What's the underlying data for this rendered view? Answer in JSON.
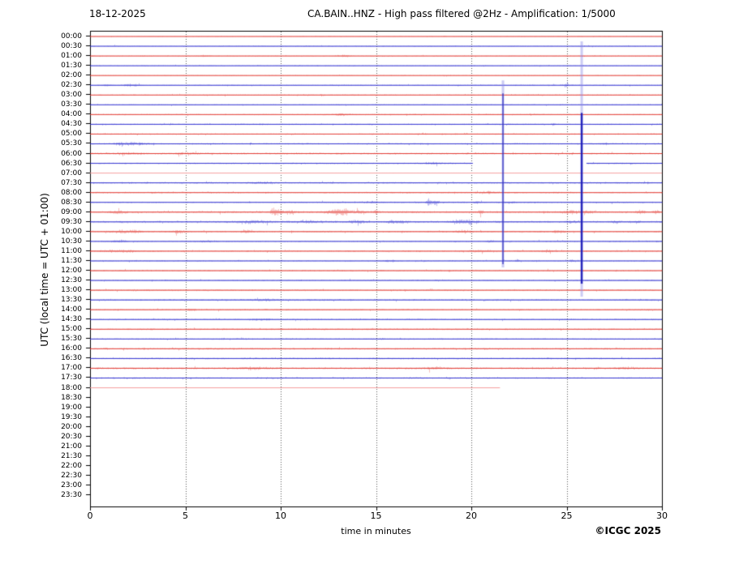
{
  "header": {
    "date": "18-12-2025",
    "title": "CA.BAIN..HNZ - High pass filtered @2Hz - Amplification: 1/5000"
  },
  "axes": {
    "x_label": "time in minutes",
    "y_label": "UTC (local time = UTC + 01:00)",
    "x_ticks": [
      0,
      5,
      10,
      15,
      20,
      25,
      30
    ],
    "x_range": [
      0,
      30
    ],
    "grid_minutes": [
      5,
      10,
      15,
      20,
      25
    ]
  },
  "footer": {
    "copyright": "©ICGC 2025"
  },
  "colors": {
    "red": "#e03028",
    "blue": "#2525cd",
    "pale_red": "#f5a0a0",
    "spike_band": "#8c8ce6",
    "spike_core": "#1515b5",
    "grid": "#555555",
    "axis": "#000000",
    "text": "#000000"
  },
  "chart_data": {
    "type": "line",
    "subtype": "helicorder",
    "title": "CA.BAIN..HNZ - High pass filtered @2Hz - Amplification: 1/5000",
    "xlabel": "time in minutes",
    "ylabel": "UTC (local time = UTC + 01:00)",
    "xlim": [
      0,
      30
    ],
    "grid": true,
    "minutes_per_row": 30,
    "rows": [
      {
        "label": "00:00",
        "color": "red",
        "data": true,
        "amp": 0.5,
        "events": []
      },
      {
        "label": "00:30",
        "color": "blue",
        "data": true,
        "amp": 0.7,
        "events": []
      },
      {
        "label": "01:00",
        "color": "red",
        "data": true,
        "amp": 0.7,
        "events": [
          [
            6,
            1.2,
            0.15
          ],
          [
            13.3,
            1.4,
            0.2
          ]
        ]
      },
      {
        "label": "01:30",
        "color": "blue",
        "data": true,
        "amp": 0.7,
        "events": []
      },
      {
        "label": "02:00",
        "color": "red",
        "data": true,
        "amp": 0.6,
        "events": []
      },
      {
        "label": "02:30",
        "color": "blue",
        "data": true,
        "amp": 0.8,
        "events": [
          [
            0.9,
            1.8,
            0.2
          ],
          [
            2.1,
            1.7,
            0.3
          ],
          [
            25,
            1.1,
            0.2
          ]
        ]
      },
      {
        "label": "03:00",
        "color": "red",
        "data": true,
        "amp": 0.9,
        "events": []
      },
      {
        "label": "03:30",
        "color": "blue",
        "data": true,
        "amp": 0.8,
        "events": []
      },
      {
        "label": "04:00",
        "color": "red",
        "data": true,
        "amp": 0.9,
        "events": [
          [
            13.2,
            1.4,
            0.3
          ]
        ]
      },
      {
        "label": "04:30",
        "color": "blue",
        "data": true,
        "amp": 0.9,
        "events": [
          [
            24.3,
            2.8,
            0.08
          ]
        ]
      },
      {
        "label": "05:00",
        "color": "red",
        "data": true,
        "amp": 0.9,
        "events": []
      },
      {
        "label": "05:30",
        "color": "blue",
        "data": true,
        "amp": 1.0,
        "events": [
          [
            1.8,
            2.0,
            0.4
          ],
          [
            2.6,
            1.4,
            0.3
          ],
          [
            27,
            1.3,
            0.15
          ]
        ]
      },
      {
        "label": "06:00",
        "color": "red",
        "data": true,
        "amp": 1.2,
        "events": [
          [
            2,
            1.4,
            0.5
          ],
          [
            5,
            1.2,
            0.4
          ]
        ]
      },
      {
        "label": "06:30",
        "color": "blue",
        "data": true,
        "amp": 1.0,
        "gaps": [
          [
            20.08,
            26.04
          ]
        ],
        "events": [
          [
            18,
            1.4,
            0.3
          ]
        ]
      },
      {
        "label": "07:00",
        "color": "red",
        "data": true,
        "pale": true,
        "amp": 0.3,
        "events": []
      },
      {
        "label": "07:30",
        "color": "blue",
        "data": true,
        "amp": 1.1,
        "events": [
          [
            9,
            1.3,
            0.4
          ]
        ]
      },
      {
        "label": "08:00",
        "color": "red",
        "data": true,
        "amp": 1.1,
        "events": [
          [
            21,
            1.3,
            0.3
          ]
        ]
      },
      {
        "label": "08:30",
        "color": "blue",
        "data": true,
        "amp": 1.0,
        "events": [
          [
            14.8,
            1.4,
            0.2
          ],
          [
            17.75,
            5.5,
            0.1
          ],
          [
            18.1,
            4.5,
            0.12
          ],
          [
            20.3,
            1.6,
            0.15
          ],
          [
            22,
            1.3,
            0.2
          ]
        ]
      },
      {
        "label": "09:00",
        "color": "red",
        "data": true,
        "amp": 1.4,
        "events": [
          [
            1.5,
            2.2,
            0.25
          ],
          [
            9.62,
            5.0,
            0.12
          ],
          [
            9.95,
            4.0,
            0.1
          ],
          [
            10.4,
            2.5,
            0.2
          ],
          [
            12.6,
            2.2,
            0.3
          ],
          [
            13.1,
            3.0,
            0.25
          ],
          [
            13.35,
            3.0,
            0.2
          ],
          [
            14.1,
            2.2,
            0.3
          ],
          [
            15.0,
            3.5,
            0.07
          ],
          [
            20.5,
            4.0,
            0.08
          ],
          [
            25.2,
            2.2,
            0.3
          ],
          [
            26.1,
            2.0,
            0.2
          ],
          [
            28.9,
            2.3,
            0.15
          ],
          [
            29.7,
            2.5,
            0.12
          ]
        ]
      },
      {
        "label": "09:30",
        "color": "blue",
        "data": true,
        "amp": 1.3,
        "events": [
          [
            8.5,
            1.7,
            0.6
          ],
          [
            11.5,
            1.5,
            0.4
          ],
          [
            14,
            1.7,
            0.3
          ],
          [
            15.8,
            2.2,
            0.15
          ],
          [
            16.3,
            1.8,
            0.2
          ],
          [
            19.35,
            3.5,
            0.25
          ],
          [
            19.9,
            2.5,
            0.15
          ],
          [
            20.3,
            2.0,
            0.1
          ],
          [
            25.2,
            1.6,
            0.2
          ],
          [
            27.6,
            1.6,
            0.15
          ],
          [
            28.6,
            1.5,
            0.15
          ]
        ]
      },
      {
        "label": "10:00",
        "color": "red",
        "data": true,
        "amp": 1.2,
        "events": [
          [
            1.6,
            1.8,
            0.4
          ],
          [
            2.3,
            1.6,
            0.3
          ],
          [
            4.6,
            2.0,
            0.25
          ],
          [
            8.2,
            2.6,
            0.15
          ],
          [
            19.5,
            2.0,
            0.3
          ],
          [
            24.6,
            1.4,
            0.2
          ]
        ]
      },
      {
        "label": "10:30",
        "color": "blue",
        "data": true,
        "amp": 1.0,
        "events": [
          [
            1.5,
            1.6,
            0.3
          ],
          [
            6,
            1.2,
            0.3
          ],
          [
            21,
            1.4,
            0.2
          ]
        ]
      },
      {
        "label": "11:00",
        "color": "red",
        "data": true,
        "amp": 1.1,
        "events": [
          [
            1.5,
            1.3,
            0.8
          ],
          [
            20.5,
            1.6,
            0.5
          ],
          [
            24,
            1.3,
            0.3
          ]
        ]
      },
      {
        "label": "11:30",
        "color": "blue",
        "data": true,
        "amp": 0.9,
        "events": [
          [
            15.55,
            2.2,
            0.08
          ],
          [
            15.85,
            1.8,
            0.08
          ],
          [
            22.4,
            2.2,
            0.08
          ],
          [
            25.3,
            1.4,
            0.1
          ]
        ]
      },
      {
        "label": "12:00",
        "color": "red",
        "data": true,
        "amp": 1.1,
        "events": []
      },
      {
        "label": "12:30",
        "color": "blue",
        "data": true,
        "amp": 1.0,
        "events": []
      },
      {
        "label": "13:00",
        "color": "red",
        "data": true,
        "amp": 1.1,
        "events": []
      },
      {
        "label": "13:30",
        "color": "blue",
        "data": true,
        "amp": 1.2,
        "events": [
          [
            9,
            1.3,
            0.5
          ]
        ]
      },
      {
        "label": "14:00",
        "color": "red",
        "data": true,
        "amp": 1.1,
        "events": [
          [
            5.3,
            2.0,
            0.12
          ]
        ]
      },
      {
        "label": "14:30",
        "color": "blue",
        "data": true,
        "amp": 1.0,
        "events": [
          [
            9,
            1.2,
            0.3
          ]
        ]
      },
      {
        "label": "15:00",
        "color": "red",
        "data": true,
        "amp": 1.1,
        "events": []
      },
      {
        "label": "15:30",
        "color": "blue",
        "data": true,
        "amp": 1.0,
        "events": []
      },
      {
        "label": "16:00",
        "color": "red",
        "data": true,
        "amp": 1.2,
        "events": []
      },
      {
        "label": "16:30",
        "color": "blue",
        "data": true,
        "amp": 1.1,
        "events": []
      },
      {
        "label": "17:00",
        "color": "red",
        "data": true,
        "amp": 1.3,
        "events": [
          [
            8.5,
            1.5,
            0.5
          ],
          [
            18,
            1.5,
            0.4
          ],
          [
            28,
            1.4,
            0.3
          ]
        ]
      },
      {
        "label": "17:30",
        "color": "blue",
        "data": true,
        "amp": 1.0,
        "events": []
      },
      {
        "label": "18:00",
        "color": "red",
        "data": true,
        "pale": true,
        "amp": 0.3,
        "end": 21.5,
        "events": []
      },
      {
        "label": "18:30",
        "color": "blue",
        "data": false
      },
      {
        "label": "19:00",
        "color": "red",
        "data": false
      },
      {
        "label": "19:30",
        "color": "blue",
        "data": false
      },
      {
        "label": "20:00",
        "color": "red",
        "data": false
      },
      {
        "label": "20:30",
        "color": "blue",
        "data": false
      },
      {
        "label": "21:00",
        "color": "red",
        "data": false
      },
      {
        "label": "21:30",
        "color": "blue",
        "data": false
      },
      {
        "label": "22:00",
        "color": "red",
        "data": false
      },
      {
        "label": "22:30",
        "color": "blue",
        "data": false
      },
      {
        "label": "23:00",
        "color": "red",
        "data": false
      },
      {
        "label": "23:30",
        "color": "blue",
        "data": false
      }
    ],
    "spikes": [
      {
        "x_min": 21.66,
        "band_from": "02:30",
        "band_to": "11:30",
        "core_from": "03:00",
        "core_to": "11:30",
        "core_w": 1.2
      },
      {
        "x_min": 25.79,
        "band_from": "00:30",
        "band_to": "13:00",
        "core_from": "04:00",
        "core_to": "12:30",
        "core_w": 2.4
      }
    ]
  }
}
